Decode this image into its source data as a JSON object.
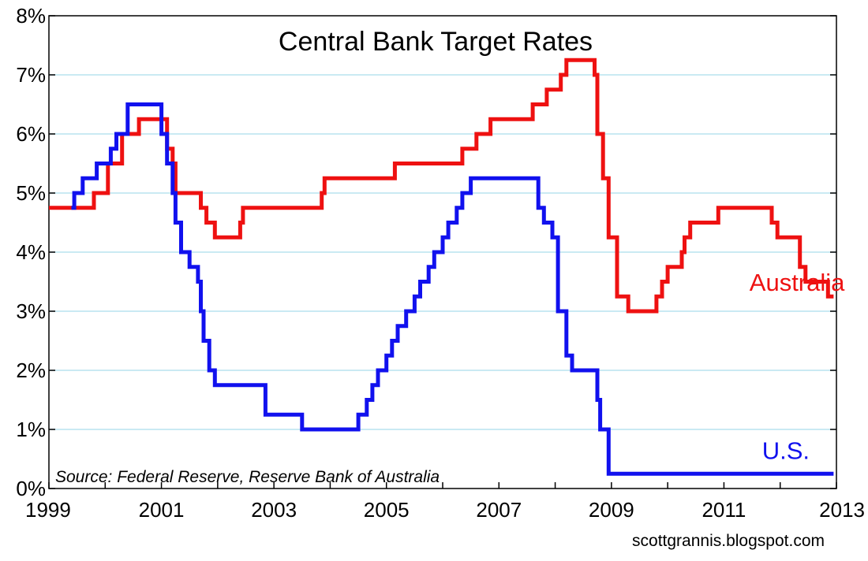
{
  "chart_data": {
    "type": "line",
    "step": true,
    "title": "Central Bank Target Rates",
    "source": "Source: Federal Reserve, Reserve Bank of Australia",
    "credit": "scottgrannis.blogspot.com",
    "xlabel": "",
    "ylabel": "",
    "xlim": [
      1999,
      2013
    ],
    "ylim": [
      0,
      8
    ],
    "x_ticks": [
      {
        "value": 1999,
        "label": "1999"
      },
      {
        "value": 2001,
        "label": "2001"
      },
      {
        "value": 2003,
        "label": "2003"
      },
      {
        "value": 2005,
        "label": "2005"
      },
      {
        "value": 2007,
        "label": "2007"
      },
      {
        "value": 2009,
        "label": "2009"
      },
      {
        "value": 2011,
        "label": "2011"
      },
      {
        "value": 2013,
        "label": "2013"
      }
    ],
    "y_ticks": [
      {
        "value": 0,
        "label": "0%"
      },
      {
        "value": 1,
        "label": "1%"
      },
      {
        "value": 2,
        "label": "2%"
      },
      {
        "value": 3,
        "label": "3%"
      },
      {
        "value": 4,
        "label": "4%"
      },
      {
        "value": 5,
        "label": "5%"
      },
      {
        "value": 6,
        "label": "6%"
      },
      {
        "value": 7,
        "label": "7%"
      },
      {
        "value": 8,
        "label": "8%"
      }
    ],
    "grid": "horizontal",
    "grid_color": "#b9e3ef",
    "series": [
      {
        "name": "Australia",
        "color": "#ee1111",
        "label_at": [
          2012.3,
          3.35
        ],
        "points": [
          [
            1999.0,
            4.75
          ],
          [
            1999.8,
            5.0
          ],
          [
            2000.05,
            5.5
          ],
          [
            2000.3,
            6.0
          ],
          [
            2000.6,
            6.25
          ],
          [
            2001.1,
            5.75
          ],
          [
            2001.2,
            5.5
          ],
          [
            2001.25,
            5.0
          ],
          [
            2001.7,
            4.75
          ],
          [
            2001.8,
            4.5
          ],
          [
            2001.95,
            4.25
          ],
          [
            2002.4,
            4.5
          ],
          [
            2002.45,
            4.75
          ],
          [
            2003.85,
            5.0
          ],
          [
            2003.9,
            5.25
          ],
          [
            2005.15,
            5.5
          ],
          [
            2006.35,
            5.75
          ],
          [
            2006.6,
            6.0
          ],
          [
            2006.85,
            6.25
          ],
          [
            2007.6,
            6.5
          ],
          [
            2007.85,
            6.75
          ],
          [
            2008.1,
            7.0
          ],
          [
            2008.2,
            7.25
          ],
          [
            2008.7,
            7.0
          ],
          [
            2008.75,
            6.0
          ],
          [
            2008.85,
            5.25
          ],
          [
            2008.95,
            4.25
          ],
          [
            2009.1,
            3.25
          ],
          [
            2009.3,
            3.0
          ],
          [
            2009.8,
            3.25
          ],
          [
            2009.9,
            3.5
          ],
          [
            2010.0,
            3.75
          ],
          [
            2010.25,
            4.0
          ],
          [
            2010.3,
            4.25
          ],
          [
            2010.4,
            4.5
          ],
          [
            2010.9,
            4.75
          ],
          [
            2011.85,
            4.5
          ],
          [
            2011.95,
            4.25
          ],
          [
            2012.35,
            3.75
          ],
          [
            2012.45,
            3.5
          ],
          [
            2012.85,
            3.25
          ],
          [
            2012.95,
            3.25
          ]
        ]
      },
      {
        "name": "U.S.",
        "color": "#1111ee",
        "label_at": [
          2012.1,
          0.5
        ],
        "points": [
          [
            1999.4,
            4.75
          ],
          [
            1999.45,
            5.0
          ],
          [
            1999.6,
            5.25
          ],
          [
            1999.85,
            5.5
          ],
          [
            2000.1,
            5.75
          ],
          [
            2000.2,
            6.0
          ],
          [
            2000.4,
            6.5
          ],
          [
            2001.0,
            6.0
          ],
          [
            2001.1,
            5.5
          ],
          [
            2001.2,
            5.0
          ],
          [
            2001.25,
            4.5
          ],
          [
            2001.35,
            4.0
          ],
          [
            2001.5,
            3.75
          ],
          [
            2001.65,
            3.5
          ],
          [
            2001.7,
            3.0
          ],
          [
            2001.75,
            2.5
          ],
          [
            2001.85,
            2.0
          ],
          [
            2001.95,
            1.75
          ],
          [
            2002.85,
            1.25
          ],
          [
            2003.5,
            1.0
          ],
          [
            2004.5,
            1.25
          ],
          [
            2004.65,
            1.5
          ],
          [
            2004.75,
            1.75
          ],
          [
            2004.85,
            2.0
          ],
          [
            2005.0,
            2.25
          ],
          [
            2005.1,
            2.5
          ],
          [
            2005.2,
            2.75
          ],
          [
            2005.35,
            3.0
          ],
          [
            2005.5,
            3.25
          ],
          [
            2005.6,
            3.5
          ],
          [
            2005.75,
            3.75
          ],
          [
            2005.85,
            4.0
          ],
          [
            2006.0,
            4.25
          ],
          [
            2006.1,
            4.5
          ],
          [
            2006.25,
            4.75
          ],
          [
            2006.35,
            5.0
          ],
          [
            2006.5,
            5.25
          ],
          [
            2007.7,
            4.75
          ],
          [
            2007.8,
            4.5
          ],
          [
            2007.95,
            4.25
          ],
          [
            2008.05,
            3.0
          ],
          [
            2008.2,
            2.25
          ],
          [
            2008.3,
            2.0
          ],
          [
            2008.75,
            1.5
          ],
          [
            2008.8,
            1.0
          ],
          [
            2008.95,
            0.25
          ],
          [
            2012.95,
            0.25
          ]
        ]
      }
    ]
  }
}
